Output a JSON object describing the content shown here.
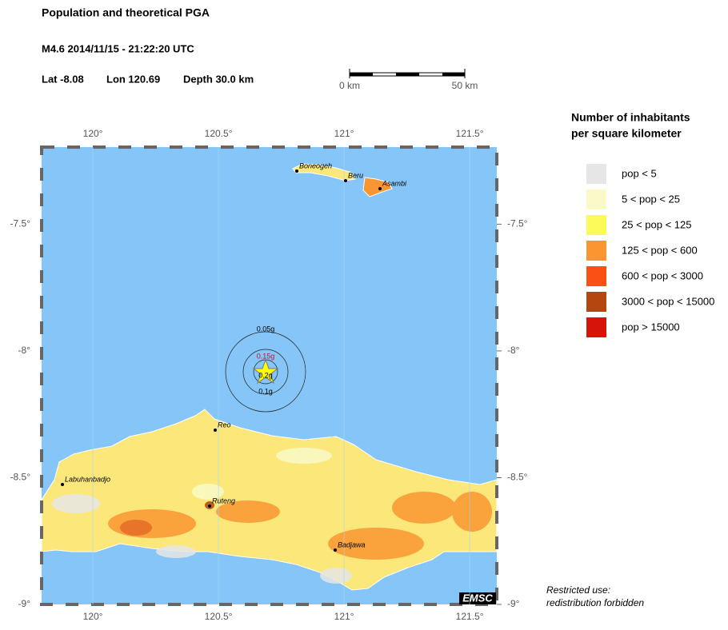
{
  "header": {
    "title": "Population and theoretical PGA",
    "event": "M4.6  2014/11/15 - 21:22:20 UTC",
    "lat": "Lat -8.08",
    "lon": "Lon 120.69",
    "depth": "Depth  30.0 km"
  },
  "scale_bar": {
    "start": "0 km",
    "end": "50 km"
  },
  "map": {
    "xlim": [
      119.796,
      121.608
    ],
    "ylim": [
      -9.0,
      -7.196
    ],
    "lon_ticks": [
      {
        "value": 120,
        "label": "120°"
      },
      {
        "value": 120.5,
        "label": "120.5°"
      },
      {
        "value": 121,
        "label": "121°"
      },
      {
        "value": 121.5,
        "label": "121.5°"
      }
    ],
    "lat_ticks": [
      {
        "value": -7.5,
        "label": "-7.5°"
      },
      {
        "value": -8,
        "label": "-8°"
      },
      {
        "value": -8.5,
        "label": "-8.5°"
      },
      {
        "value": -9,
        "label": "-9°"
      }
    ],
    "cities": [
      "Boneogeh",
      "Beru",
      "Asambi",
      "Reo",
      "Labuhanbadjo",
      "Ruteng",
      "Badjawa"
    ],
    "pga_labels": [
      "0.05g",
      "0.15g",
      "0.2g",
      "0.1g"
    ],
    "logo": "EMSC"
  },
  "legend": {
    "title": [
      "Number of inhabitants",
      "per square kilometer"
    ],
    "items": [
      {
        "label": "pop < 5",
        "color": "#e6e6e6"
      },
      {
        "label": "5 < pop < 25",
        "color": "#fafac8"
      },
      {
        "label": "25 < pop < 125",
        "color": "#fafa5a"
      },
      {
        "label": "125 < pop < 600",
        "color": "#fa9632"
      },
      {
        "label": "600 < pop < 3000",
        "color": "#fa5014"
      },
      {
        "label": "3000 < pop < 15000",
        "color": "#b4460f"
      },
      {
        "label": "pop > 15000",
        "color": "#d7140a"
      }
    ]
  },
  "footnote": [
    "Restricted use:",
    "redistribution forbidden"
  ]
}
